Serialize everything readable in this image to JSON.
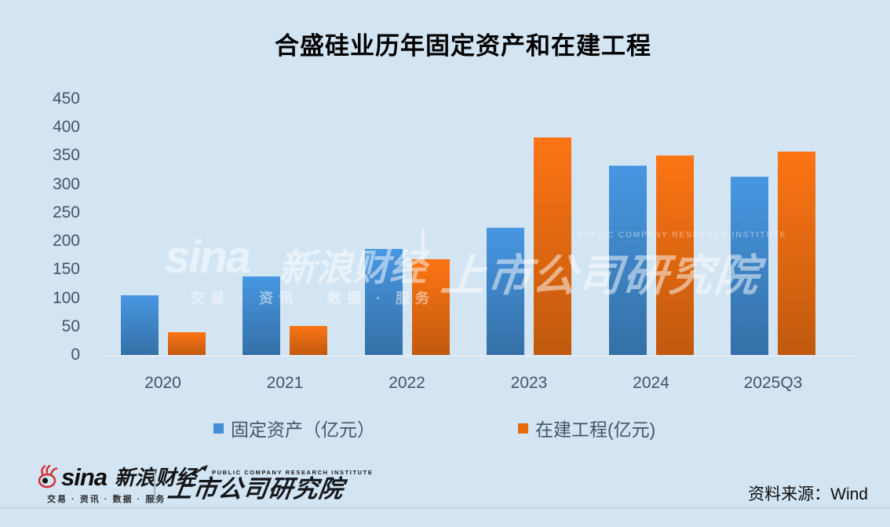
{
  "title": "合盛硅业历年固定资产和在建工程",
  "chart_data": {
    "type": "bar",
    "categories": [
      "2020",
      "2021",
      "2022",
      "2023",
      "2024",
      "2025Q3"
    ],
    "series": [
      {
        "name": "固定资产（亿元）",
        "values": [
          105,
          138,
          187,
          223,
          333,
          314
        ],
        "color_top": "#4897e3",
        "color_bottom": "#3470a6",
        "legend_color": "#438fd4"
      },
      {
        "name": "在建工程(亿元)",
        "values": [
          40,
          51,
          168,
          382,
          350,
          357
        ],
        "color_top": "#fd7414",
        "color_bottom": "#c05a0e",
        "legend_color": "#e8680e"
      }
    ],
    "title": "合盛硅业历年固定资产和在建工程",
    "xlabel": "",
    "ylabel": "",
    "ylim": [
      0,
      450
    ],
    "ytick_step": 50,
    "grid": false,
    "legend_position": "bottom"
  },
  "watermark": {
    "sina": "sina",
    "brand": "新浪财经",
    "tagline": "交易 · 资讯 · 数据 · 服务",
    "divider": "|",
    "institute_en": "PUBLIC COMPANY RESEARCH INSTITUTE",
    "institute": "上市公司研究院"
  },
  "footer": {
    "sina_wordmark": "sina",
    "sina_brand": "新浪财经",
    "sina_tagline": "交易 · 资讯 · 数据 · 服务",
    "institute_en": "PUBLIC COMPANY RESEARCH INSTITUTE",
    "institute_cn": "上市公司研究院",
    "source": "资料来源：Wind"
  },
  "colors": {
    "background": "#d3e5f3",
    "axis_text": "#44546a",
    "baseline": "#e4edf6",
    "sina_red": "#d7282f",
    "footer_rule": "#b4cbdd",
    "blue_bar_top": "#4897e3",
    "blue_bar_bottom": "#3470a6",
    "orange_bar_top": "#fd7414",
    "orange_bar_bottom": "#c05a0e"
  }
}
